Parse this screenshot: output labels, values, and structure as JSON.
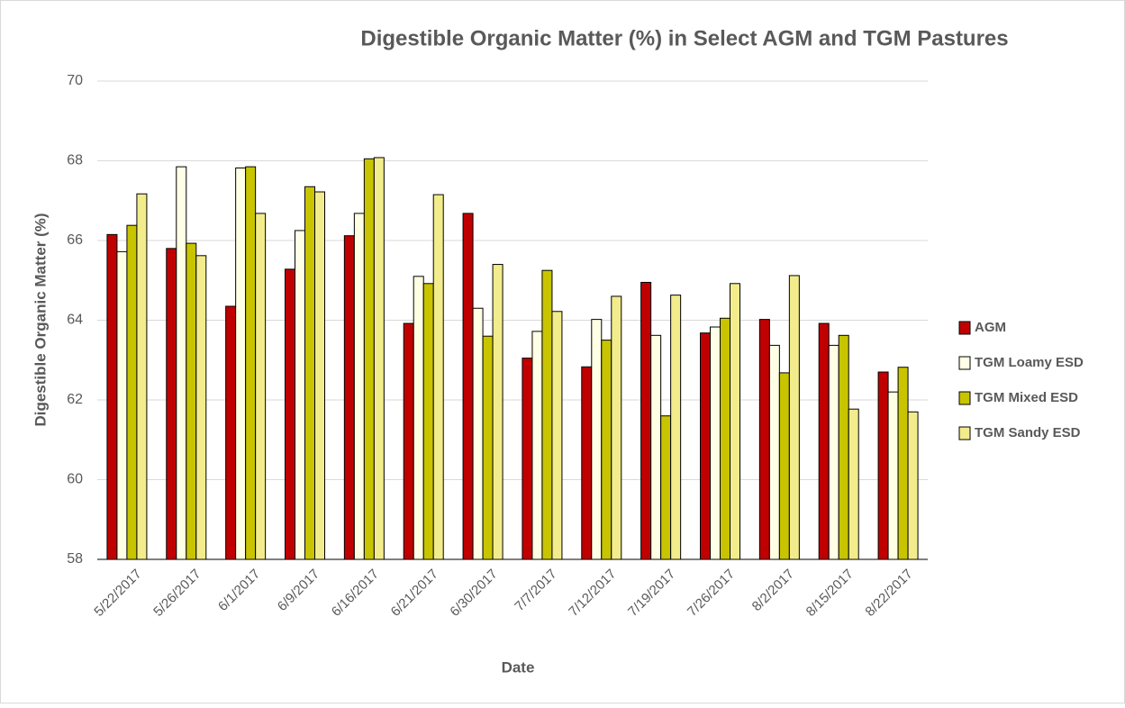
{
  "chart_data": {
    "type": "bar",
    "title": "Digestible Organic Matter (%) in Select AGM and TGM Pastures",
    "xlabel": "Date",
    "ylabel": "Digestible Organic Matter (%)",
    "categories": [
      "5/22/2017",
      "5/26/2017",
      "6/1/2017",
      "6/9/2017",
      "6/16/2017",
      "6/21/2017",
      "6/30/2017",
      "7/7/2017",
      "7/12/2017",
      "7/19/2017",
      "7/26/2017",
      "8/2/2017",
      "8/15/2017",
      "8/22/2017"
    ],
    "series": [
      {
        "name": "AGM",
        "color": "#c00000",
        "values": [
          66.15,
          65.8,
          64.35,
          65.28,
          66.12,
          63.92,
          66.68,
          63.05,
          62.83,
          64.95,
          63.68,
          64.02,
          63.92,
          62.7
        ]
      },
      {
        "name": "TGM Loamy ESD",
        "color": "#ffffe6",
        "values": [
          65.72,
          67.85,
          67.82,
          66.25,
          66.68,
          65.1,
          64.3,
          63.72,
          64.02,
          63.62,
          63.83,
          63.37,
          63.37,
          62.2
        ]
      },
      {
        "name": "TGM Mixed ESD",
        "color": "#c8c400",
        "values": [
          66.38,
          65.93,
          67.85,
          67.35,
          68.05,
          64.92,
          63.6,
          65.25,
          63.5,
          61.6,
          64.05,
          62.68,
          63.62,
          62.82
        ]
      },
      {
        "name": "TGM Sandy ESD",
        "color": "#f2ec8c",
        "values": [
          67.17,
          65.62,
          66.68,
          67.22,
          68.08,
          67.15,
          65.4,
          64.22,
          64.6,
          64.63,
          64.92,
          65.12,
          61.77,
          61.7
        ]
      }
    ],
    "ylim": [
      58,
      70
    ],
    "yticks": [
      58,
      60,
      62,
      64,
      66,
      68,
      70
    ],
    "grid": true,
    "legend": "right"
  }
}
